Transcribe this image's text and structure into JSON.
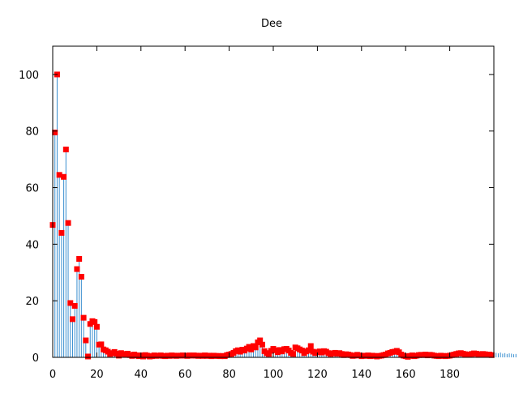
{
  "chart_data": {
    "type": "scatter",
    "style": "impulses-with-points",
    "title": "Dee",
    "xlabel": "",
    "ylabel": "",
    "xlim": [
      0,
      200
    ],
    "ylim": [
      0,
      110
    ],
    "xticks": [
      0,
      20,
      40,
      60,
      80,
      100,
      120,
      140,
      160,
      180
    ],
    "yticks": [
      0,
      20,
      40,
      60,
      80,
      100
    ],
    "grid": false,
    "legend": false,
    "colors": {
      "impulse": "#3a8fd0",
      "point": "#ff0000",
      "axis": "#000000"
    },
    "x_start": 0,
    "values": [
      46.8,
      79.5,
      100,
      64.5,
      44,
      63.8,
      73.5,
      47.5,
      19.2,
      13.5,
      18.2,
      31.2,
      34.8,
      28.5,
      14,
      6,
      0.3,
      11.8,
      12.8,
      12.5,
      10.8,
      4.5,
      4.6,
      2.8,
      2.5,
      2,
      1.2,
      1.5,
      1.9,
      1.3,
      0.6,
      1.5,
      1.2,
      1.0,
      1.3,
      0.8,
      0.5,
      1.0,
      0.7,
      0.4,
      0.7,
      0.3,
      0.8,
      0.6,
      0.3,
      0.4,
      0.7,
      0.5,
      0.6,
      0.7,
      0.5,
      0.4,
      0.6,
      0.5,
      0.7,
      0.6,
      0.5,
      0.6,
      0.6,
      0.7,
      0.6,
      0.5,
      0.7,
      0.6,
      0.7,
      0.6,
      0.5,
      0.6,
      0.5,
      0.7,
      0.5,
      0.6,
      0.4,
      0.6,
      0.5,
      0.5,
      0.4,
      0.5,
      0.4,
      0.8,
      1.0,
      1.2,
      1.6,
      2.2,
      2.5,
      2.0,
      2.7,
      2.4,
      3.1,
      3.7,
      2.8,
      4.0,
      3.5,
      5.3,
      6.0,
      4.5,
      2.2,
      1.5,
      1.2,
      2.3,
      3.0,
      2.5,
      1.8,
      2.6,
      2.1,
      2.9,
      3.0,
      2.4,
      1.6,
      1.2,
      3.5,
      3.2,
      2.8,
      2.4,
      1.5,
      2.1,
      2.5,
      4.0,
      2.0,
      1.5,
      1.8,
      2.1,
      1.7,
      2.2,
      2.0,
      1.5,
      1.2,
      1.4,
      1.6,
      1.3,
      1.5,
      1.2,
      0.8,
      1.1,
      1.0,
      0.8,
      0.5,
      0.6,
      0.9,
      0.7,
      0.4,
      0.6,
      0.5,
      0.7,
      0.4,
      0.6,
      0.5,
      0.3,
      0.5,
      0.6,
      0.8,
      1.0,
      1.4,
      1.6,
      1.9,
      2.0,
      2.3,
      1.8,
      1.0,
      0.6,
      0.4,
      0.2,
      0.5,
      0.7,
      0.4,
      0.6,
      0.8,
      0.9,
      0.8,
      1.0,
      0.7,
      0.9,
      0.8,
      0.6,
      0.5,
      0.4,
      0.6,
      0.5,
      0.4,
      0.5,
      0.6,
      0.8,
      1.0,
      1.2,
      1.4,
      1.5,
      1.3,
      1.1,
      0.9,
      1.0,
      1.2,
      1.4,
      1.3,
      1.1,
      1.0,
      1.2,
      1.1,
      0.9,
      1.0,
      0.8
    ],
    "extra_impulses": [
      1.5,
      1.6,
      1.4,
      1.7,
      1.3,
      1.5,
      1.2,
      1.4,
      1.3,
      1.1,
      1.2
    ]
  }
}
